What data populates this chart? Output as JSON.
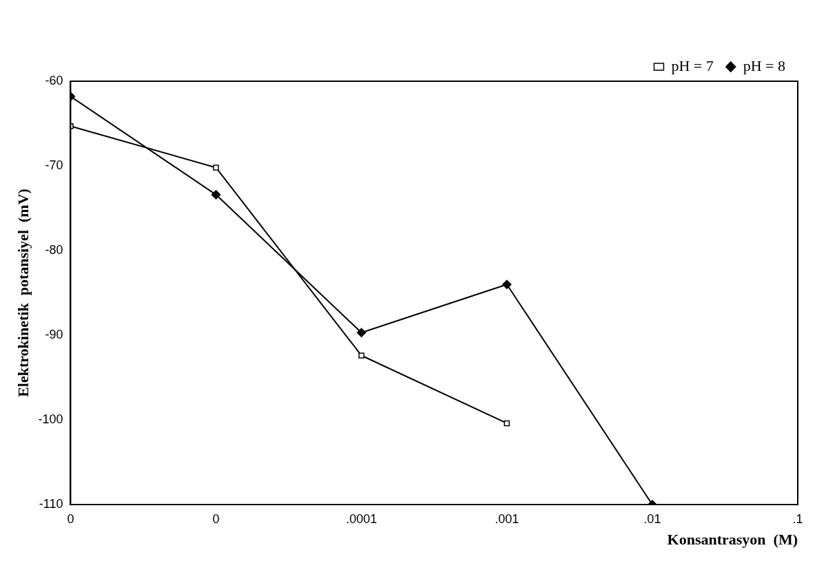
{
  "chart_data": {
    "type": "line",
    "xlabel": "Konsantrasyon  (M)",
    "ylabel": "Elektrokinetik  potansiyel  (mV)",
    "log": "x",
    "xlim": [
      1e-06,
      0.1
    ],
    "ylim": [
      -110,
      -60
    ],
    "xticks": [
      {
        "value": 1e-06,
        "label": "0"
      },
      {
        "value": 1e-05,
        "label": "0"
      },
      {
        "value": 0.0001,
        "label": ".0001"
      },
      {
        "value": 0.001,
        "label": ".001"
      },
      {
        "value": 0.01,
        "label": ".01"
      },
      {
        "value": 0.1,
        "label": ".1"
      }
    ],
    "yticks": [
      -110,
      -100,
      -90,
      -80,
      -70,
      -60
    ],
    "grid": false,
    "legend": "top right",
    "line_style": "solid",
    "series": [
      {
        "name": "pH = 7",
        "color": "#000000",
        "marker": "square",
        "x": [
          1e-06,
          1e-05,
          0.0001,
          0.001
        ],
        "values": [
          -65.3,
          -70.2,
          -92.4,
          -100.4
        ]
      },
      {
        "name": "pH = 8",
        "color": "#000000",
        "marker": "diamond",
        "x": [
          1e-06,
          1e-05,
          0.0001,
          0.001,
          0.01
        ],
        "values": [
          -61.8,
          -73.4,
          -89.7,
          -84,
          -110
        ]
      }
    ]
  }
}
